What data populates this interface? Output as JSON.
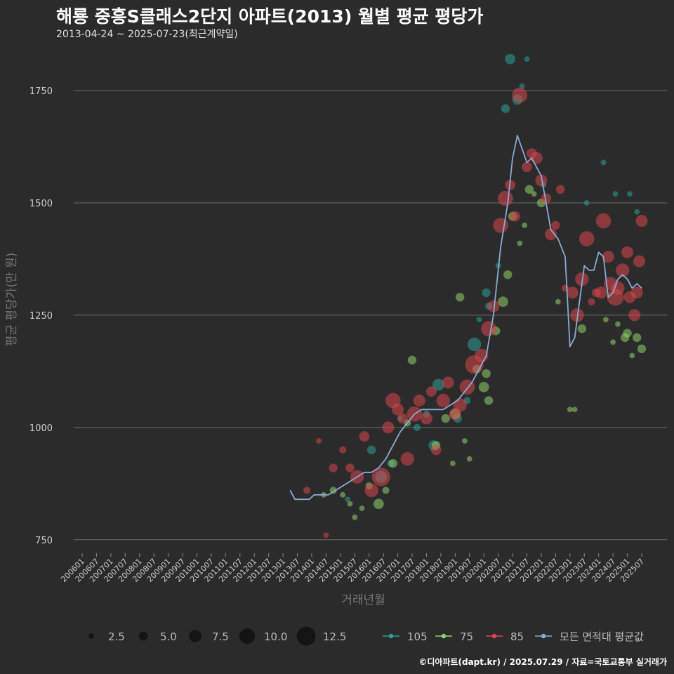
{
  "header": {
    "title": "해룡 중흥S클래스2단지 아파트(2013) 월별 평균 평당가",
    "subtitle": "2013-04-24 ~ 2025-07-23(최근계약일)"
  },
  "caption": "©디아파트(dapt.kr) / 2025.07.29 / 자료=국토교통부 실거래가",
  "chart_data": {
    "type": "scatter",
    "xlabel": "거래년월",
    "ylabel": "평균 평당가(만 원)",
    "ylim": [
      720,
      1850
    ],
    "yticks": [
      750,
      1000,
      1250,
      1500,
      1750
    ],
    "xrange": [
      "2006-01",
      "2025-07"
    ],
    "xticks": [
      "200601",
      "200607",
      "200701",
      "200707",
      "200801",
      "200807",
      "200901",
      "200907",
      "201001",
      "201007",
      "201101",
      "201107",
      "201201",
      "201207",
      "201301",
      "201307",
      "201401",
      "201407",
      "201501",
      "201507",
      "201601",
      "201607",
      "201701",
      "201707",
      "201801",
      "201807",
      "201901",
      "201907",
      "202001",
      "202007",
      "202101",
      "202107",
      "202201",
      "202207",
      "202301",
      "202307",
      "202401",
      "202407",
      "202501",
      "202507"
    ],
    "grid": true,
    "size_legend": {
      "values": [
        "2.5",
        "5.0",
        "7.5",
        "10.0",
        "12.5"
      ]
    },
    "series": [
      {
        "name": "105",
        "color": "#2aa198",
        "points": [
          [
            "2015-04",
            840,
            2
          ],
          [
            "2016-02",
            950,
            4
          ],
          [
            "2016-06",
            890,
            6
          ],
          [
            "2016-10",
            920,
            3
          ],
          [
            "2017-02",
            1020,
            2
          ],
          [
            "2017-09",
            1000,
            3
          ],
          [
            "2018-01",
            1030,
            3
          ],
          [
            "2018-04",
            960,
            5
          ],
          [
            "2018-06",
            1095,
            6
          ],
          [
            "2019-02",
            1020,
            4
          ],
          [
            "2019-06",
            1060,
            3
          ],
          [
            "2019-09",
            1185,
            7
          ],
          [
            "2019-11",
            1240,
            2
          ],
          [
            "2020-02",
            1300,
            4
          ],
          [
            "2020-03",
            1270,
            3
          ],
          [
            "2020-07",
            1360,
            2
          ],
          [
            "2020-10",
            1710,
            4
          ],
          [
            "2020-12",
            1820,
            5
          ],
          [
            "2021-03",
            1730,
            5
          ],
          [
            "2021-05",
            1760,
            2
          ],
          [
            "2021-07",
            1820,
            2
          ],
          [
            "2022-02",
            1540,
            2
          ],
          [
            "2023-08",
            1500,
            2
          ],
          [
            "2024-03",
            1590,
            2
          ],
          [
            "2024-08",
            1520,
            2
          ],
          [
            "2025-02",
            1520,
            2
          ],
          [
            "2025-05",
            1480,
            2
          ]
        ]
      },
      {
        "name": "75",
        "color": "#8fd16a",
        "points": [
          [
            "2014-06",
            850,
            2
          ],
          [
            "2014-10",
            860,
            3
          ],
          [
            "2015-02",
            850,
            2
          ],
          [
            "2015-05",
            830,
            2
          ],
          [
            "2015-07",
            800,
            2
          ],
          [
            "2015-10",
            820,
            2
          ],
          [
            "2016-01",
            870,
            3
          ],
          [
            "2016-05",
            830,
            5
          ],
          [
            "2016-08",
            860,
            3
          ],
          [
            "2016-11",
            920,
            4
          ],
          [
            "2017-05",
            1010,
            3
          ],
          [
            "2017-07",
            1150,
            4
          ],
          [
            "2018-05",
            960,
            4
          ],
          [
            "2018-09",
            1020,
            4
          ],
          [
            "2018-12",
            920,
            2
          ],
          [
            "2019-01",
            1030,
            5
          ],
          [
            "2019-03",
            1290,
            4
          ],
          [
            "2019-05",
            970,
            2
          ],
          [
            "2019-07",
            930,
            2
          ],
          [
            "2019-10",
            1130,
            4
          ],
          [
            "2020-01",
            1090,
            5
          ],
          [
            "2020-02",
            1120,
            4
          ],
          [
            "2020-03",
            1060,
            4
          ],
          [
            "2020-06",
            1215,
            4
          ],
          [
            "2020-09",
            1280,
            5
          ],
          [
            "2020-11",
            1340,
            4
          ],
          [
            "2021-01",
            1470,
            4
          ],
          [
            "2021-04",
            1410,
            2
          ],
          [
            "2021-06",
            1450,
            2
          ],
          [
            "2021-08",
            1530,
            4
          ],
          [
            "2021-10",
            1520,
            2
          ],
          [
            "2022-01",
            1500,
            4
          ],
          [
            "2022-08",
            1280,
            2
          ],
          [
            "2023-01",
            1040,
            2
          ],
          [
            "2023-03",
            1040,
            2
          ],
          [
            "2023-06",
            1220,
            4
          ],
          [
            "2024-04",
            1240,
            2
          ],
          [
            "2024-07",
            1190,
            2
          ],
          [
            "2024-09",
            1230,
            2
          ],
          [
            "2024-12",
            1200,
            4
          ],
          [
            "2025-01",
            1210,
            4
          ],
          [
            "2025-03",
            1160,
            2
          ],
          [
            "2025-05",
            1200,
            4
          ],
          [
            "2025-07",
            1175,
            4
          ]
        ]
      },
      {
        "name": "85",
        "color": "#d9464b",
        "points": [
          [
            "2013-11",
            860,
            3
          ],
          [
            "2014-04",
            970,
            2
          ],
          [
            "2014-07",
            760,
            2
          ],
          [
            "2014-10",
            910,
            4
          ],
          [
            "2015-02",
            950,
            3
          ],
          [
            "2015-05",
            910,
            4
          ],
          [
            "2015-08",
            890,
            7
          ],
          [
            "2015-11",
            980,
            5
          ],
          [
            "2016-02",
            860,
            7
          ],
          [
            "2016-06",
            890,
            10
          ],
          [
            "2016-09",
            1000,
            6
          ],
          [
            "2016-11",
            1060,
            8
          ],
          [
            "2017-01",
            1040,
            6
          ],
          [
            "2017-03",
            1020,
            5
          ],
          [
            "2017-05",
            930,
            7
          ],
          [
            "2017-08",
            1030,
            8
          ],
          [
            "2017-10",
            1060,
            6
          ],
          [
            "2018-01",
            1020,
            6
          ],
          [
            "2018-03",
            1080,
            5
          ],
          [
            "2018-05",
            950,
            5
          ],
          [
            "2018-08",
            1060,
            7
          ],
          [
            "2018-10",
            1100,
            6
          ],
          [
            "2019-01",
            1030,
            6
          ],
          [
            "2019-03",
            1050,
            7
          ],
          [
            "2019-06",
            1090,
            8
          ],
          [
            "2019-09",
            1140,
            10
          ],
          [
            "2019-12",
            1160,
            7
          ],
          [
            "2020-03",
            1220,
            8
          ],
          [
            "2020-05",
            1270,
            6
          ],
          [
            "2020-08",
            1450,
            8
          ],
          [
            "2020-10",
            1510,
            8
          ],
          [
            "2020-12",
            1540,
            5
          ],
          [
            "2021-02",
            1470,
            5
          ],
          [
            "2021-04",
            1740,
            8
          ],
          [
            "2021-07",
            1580,
            5
          ],
          [
            "2021-09",
            1610,
            5
          ],
          [
            "2021-11",
            1600,
            6
          ],
          [
            "2022-01",
            1550,
            6
          ],
          [
            "2022-03",
            1510,
            5
          ],
          [
            "2022-05",
            1430,
            6
          ],
          [
            "2022-07",
            1450,
            4
          ],
          [
            "2022-09",
            1530,
            4
          ],
          [
            "2022-11",
            1310,
            3
          ],
          [
            "2023-02",
            1300,
            6
          ],
          [
            "2023-04",
            1250,
            7
          ],
          [
            "2023-06",
            1330,
            7
          ],
          [
            "2023-08",
            1420,
            8
          ],
          [
            "2023-10",
            1280,
            3
          ],
          [
            "2023-12",
            1300,
            4
          ],
          [
            "2024-02",
            1300,
            6
          ],
          [
            "2024-03",
            1460,
            8
          ],
          [
            "2024-05",
            1380,
            6
          ],
          [
            "2024-06",
            1320,
            7
          ],
          [
            "2024-08",
            1290,
            9
          ],
          [
            "2024-09",
            1310,
            7
          ],
          [
            "2024-11",
            1350,
            7
          ],
          [
            "2025-01",
            1390,
            6
          ],
          [
            "2025-02",
            1290,
            6
          ],
          [
            "2025-04",
            1250,
            6
          ],
          [
            "2025-05",
            1300,
            6
          ],
          [
            "2025-06",
            1370,
            6
          ],
          [
            "2025-07",
            1460,
            6
          ]
        ]
      },
      {
        "name": "모든 면적대 평균값",
        "color": "#8aaad4",
        "points": [
          [
            "2013-04",
            860
          ],
          [
            "2013-06",
            840
          ],
          [
            "2013-09",
            840
          ],
          [
            "2013-12",
            840
          ],
          [
            "2014-02",
            850
          ],
          [
            "2014-05",
            850
          ],
          [
            "2014-08",
            850
          ],
          [
            "2014-11",
            860
          ],
          [
            "2015-02",
            870
          ],
          [
            "2015-05",
            880
          ],
          [
            "2015-08",
            890
          ],
          [
            "2015-11",
            900
          ],
          [
            "2016-02",
            900
          ],
          [
            "2016-05",
            910
          ],
          [
            "2016-08",
            930
          ],
          [
            "2016-11",
            960
          ],
          [
            "2017-02",
            990
          ],
          [
            "2017-05",
            1010
          ],
          [
            "2017-08",
            1030
          ],
          [
            "2017-11",
            1040
          ],
          [
            "2018-02",
            1040
          ],
          [
            "2018-05",
            1040
          ],
          [
            "2018-08",
            1040
          ],
          [
            "2018-11",
            1050
          ],
          [
            "2019-02",
            1060
          ],
          [
            "2019-05",
            1080
          ],
          [
            "2019-08",
            1100
          ],
          [
            "2019-11",
            1130
          ],
          [
            "2020-02",
            1160
          ],
          [
            "2020-05",
            1250
          ],
          [
            "2020-08",
            1400
          ],
          [
            "2020-11",
            1500
          ],
          [
            "2021-01",
            1600
          ],
          [
            "2021-03",
            1650
          ],
          [
            "2021-05",
            1620
          ],
          [
            "2021-07",
            1590
          ],
          [
            "2021-09",
            1600
          ],
          [
            "2021-11",
            1580
          ],
          [
            "2022-01",
            1560
          ],
          [
            "2022-03",
            1500
          ],
          [
            "2022-05",
            1440
          ],
          [
            "2022-08",
            1420
          ],
          [
            "2022-11",
            1380
          ],
          [
            "2023-01",
            1180
          ],
          [
            "2023-03",
            1200
          ],
          [
            "2023-05",
            1280
          ],
          [
            "2023-07",
            1360
          ],
          [
            "2023-09",
            1350
          ],
          [
            "2023-11",
            1350
          ],
          [
            "2024-01",
            1390
          ],
          [
            "2024-03",
            1380
          ],
          [
            "2024-05",
            1290
          ],
          [
            "2024-07",
            1300
          ],
          [
            "2024-09",
            1330
          ],
          [
            "2024-11",
            1340
          ],
          [
            "2025-01",
            1330
          ],
          [
            "2025-03",
            1310
          ],
          [
            "2025-05",
            1320
          ],
          [
            "2025-07",
            1310
          ]
        ]
      }
    ]
  }
}
